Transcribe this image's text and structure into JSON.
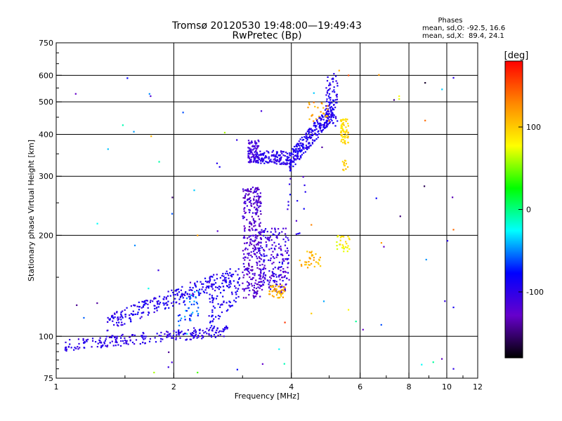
{
  "chart_data": {
    "type": "scatter",
    "title": "Tromsø 20120530 19:48:00—19:49:43",
    "subtitle": "RwPretec (Bp)",
    "xlabel": "Frequency [MHz]",
    "ylabel": "Stationary phase Virtual Height [km]",
    "x_scale": "log",
    "y_scale": "log",
    "xlim": [
      1,
      12
    ],
    "ylim": [
      75,
      750
    ],
    "grid": true,
    "x_ticks": [
      1,
      2,
      4,
      6,
      8,
      10,
      12
    ],
    "x_tick_labels": [
      "1",
      "2",
      "4",
      "6",
      "8",
      "10",
      "12"
    ],
    "x_gridlines": [
      2,
      4,
      6,
      8,
      10
    ],
    "y_ticks": [
      75,
      100,
      200,
      300,
      400,
      500,
      600,
      750
    ],
    "y_tick_labels": [
      "75",
      "100",
      "200",
      "300",
      "400",
      "500",
      "600",
      "750"
    ],
    "y_gridlines": [
      100,
      200,
      300,
      400,
      500,
      600
    ],
    "phases_box": {
      "heading": "Phases",
      "line_o": "mean, sd,O: -92.5, 16.6",
      "line_x": "mean, sd,X:  89.4, 24.1"
    },
    "colorbar": {
      "unit": "[deg]",
      "range": [
        -180,
        180
      ],
      "tick_values": [
        100,
        0,
        -100
      ],
      "tick_labels": [
        "100",
        "0",
        "-100"
      ],
      "colors": [
        "#ff0000",
        "#ff8800",
        "#ffff00",
        "#00ff00",
        "#00ffff",
        "#0000ff",
        "#6600cc",
        "#000000"
      ]
    },
    "series": [
      {
        "kind": "band",
        "x0": 1.05,
        "x1": 2.75,
        "h0": 94,
        "h1": 104,
        "jitter": 0.017,
        "count": 240,
        "phase": -100,
        "phase_spread": 12
      },
      {
        "kind": "band",
        "x0": 1.35,
        "x1": 2.85,
        "h0": 110,
        "h1": 152,
        "jitter": 0.025,
        "count": 260,
        "phase": -95,
        "phase_spread": 15
      },
      {
        "kind": "band",
        "x0": 2.45,
        "x1": 2.95,
        "h0": 118,
        "h1": 145,
        "jitter": 0.05,
        "count": 90,
        "phase": -90,
        "phase_spread": 12
      },
      {
        "kind": "band",
        "x0": 2.05,
        "x1": 2.35,
        "h0": 115,
        "h1": 128,
        "jitter": 0.04,
        "count": 40,
        "phase": -60,
        "phase_spread": 25
      },
      {
        "kind": "column",
        "x0": 3.0,
        "x1": 3.35,
        "h0": 130,
        "h1": 280,
        "count": 320,
        "phase": -120,
        "phase_spread": 18
      },
      {
        "kind": "column",
        "x0": 3.3,
        "x1": 3.95,
        "h0": 135,
        "h1": 210,
        "count": 220,
        "phase": -110,
        "phase_spread": 20
      },
      {
        "kind": "column",
        "x0": 3.5,
        "x1": 3.85,
        "h0": 130,
        "h1": 142,
        "count": 50,
        "phase": 110,
        "phase_spread": 18
      },
      {
        "kind": "band",
        "x0": 3.1,
        "x1": 3.95,
        "h0": 345,
        "h1": 340,
        "jitter": 0.02,
        "count": 160,
        "phase": -100,
        "phase_spread": 12
      },
      {
        "kind": "column",
        "x0": 3.1,
        "x1": 3.3,
        "h0": 330,
        "h1": 385,
        "count": 60,
        "phase": -110,
        "phase_spread": 12
      },
      {
        "kind": "band",
        "x0": 3.95,
        "x1": 5.15,
        "h0": 330,
        "h1": 480,
        "jitter": 0.03,
        "count": 280,
        "phase": -95,
        "phase_spread": 14
      },
      {
        "kind": "column",
        "x0": 4.9,
        "x1": 5.25,
        "h0": 420,
        "h1": 610,
        "count": 70,
        "phase": -95,
        "phase_spread": 12
      },
      {
        "kind": "column",
        "x0": 5.35,
        "x1": 5.6,
        "h0": 375,
        "h1": 445,
        "count": 70,
        "phase": 95,
        "phase_spread": 12
      },
      {
        "kind": "column",
        "x0": 4.2,
        "x1": 4.75,
        "h0": 160,
        "h1": 180,
        "count": 35,
        "phase": 110,
        "phase_spread": 15
      },
      {
        "kind": "column",
        "x0": 5.2,
        "x1": 5.65,
        "h0": 178,
        "h1": 200,
        "count": 30,
        "phase": 80,
        "phase_spread": 15
      },
      {
        "kind": "column",
        "x0": 5.35,
        "x1": 5.6,
        "h0": 310,
        "h1": 335,
        "count": 12,
        "phase": 100,
        "phase_spread": 15
      },
      {
        "kind": "column",
        "x0": 4.4,
        "x1": 5.0,
        "h0": 430,
        "h1": 500,
        "count": 25,
        "phase": 115,
        "phase_spread": 20
      },
      {
        "kind": "column",
        "x0": 3.9,
        "x1": 4.4,
        "h0": 200,
        "h1": 300,
        "count": 15,
        "phase": -100,
        "phase_spread": 20
      },
      {
        "kind": "column",
        "x0": 1.1,
        "x1": 11.0,
        "h0": 78,
        "h1": 600,
        "count": 45,
        "phase": -80,
        "phase_spread": 80
      }
    ],
    "points": [
      {
        "x": 2.62,
        "y": 320,
        "phase": -90
      },
      {
        "x": 2.58,
        "y": 328,
        "phase": -95
      },
      {
        "x": 6.7,
        "y": 602,
        "phase": 120
      },
      {
        "x": 7.55,
        "y": 510,
        "phase": 70
      },
      {
        "x": 7.55,
        "y": 520,
        "phase": 80
      },
      {
        "x": 8.8,
        "y": 570,
        "phase": -170
      },
      {
        "x": 8.8,
        "y": 440,
        "phase": 140
      },
      {
        "x": 10.4,
        "y": 590,
        "phase": -100
      },
      {
        "x": 10.4,
        "y": 208,
        "phase": 140
      },
      {
        "x": 10.4,
        "y": 122,
        "phase": -90
      },
      {
        "x": 10.4,
        "y": 80,
        "phase": -100
      },
      {
        "x": 6.8,
        "y": 190,
        "phase": 120
      },
      {
        "x": 6.9,
        "y": 185,
        "phase": -130
      },
      {
        "x": 6.6,
        "y": 258,
        "phase": -80
      },
      {
        "x": 7.6,
        "y": 228,
        "phase": -150
      },
      {
        "x": 1.75,
        "y": 395,
        "phase": 110
      },
      {
        "x": 2.7,
        "y": 405,
        "phase": 60
      },
      {
        "x": 2.9,
        "y": 385,
        "phase": -100
      },
      {
        "x": 1.98,
        "y": 232,
        "phase": -60
      },
      {
        "x": 2.3,
        "y": 200,
        "phase": 120
      },
      {
        "x": 2.3,
        "y": 78,
        "phase": 40
      },
      {
        "x": 2.35,
        "y": 74,
        "phase": 130
      },
      {
        "x": 1.78,
        "y": 78,
        "phase": 60
      },
      {
        "x": 3.85,
        "y": 110,
        "phase": 160
      },
      {
        "x": 4.5,
        "y": 117,
        "phase": 100
      },
      {
        "x": 5.6,
        "y": 120,
        "phase": 80
      },
      {
        "x": 4.5,
        "y": 215,
        "phase": 130
      },
      {
        "x": 5.6,
        "y": 600,
        "phase": 150
      },
      {
        "x": 5.3,
        "y": 620,
        "phase": 110
      }
    ]
  }
}
